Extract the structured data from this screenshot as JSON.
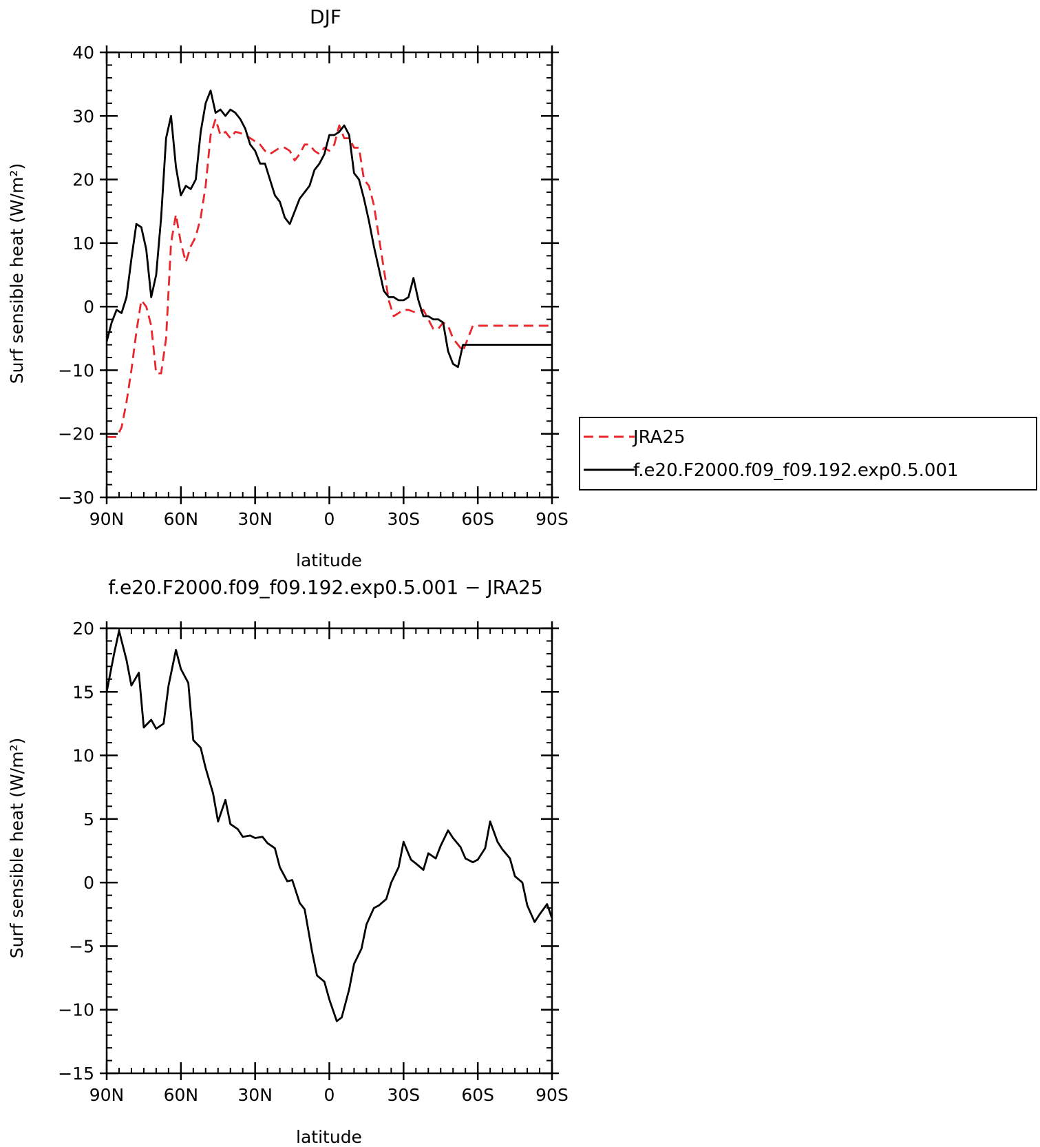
{
  "chart_data": [
    {
      "type": "line",
      "title": "DJF",
      "xlabel": "latitude",
      "ylabel": "Surf sensible heat (W/m²)",
      "xlim": [
        90,
        -90
      ],
      "ylim": [
        -30,
        40
      ],
      "xticks": [
        90,
        60,
        30,
        0,
        -30,
        -60,
        -90
      ],
      "xtick_labels": [
        "90N",
        "60N",
        "30N",
        "0",
        "30S",
        "60S",
        "90S"
      ],
      "yticks": [
        -30,
        -20,
        -10,
        0,
        10,
        20,
        30,
        40
      ],
      "ytick_labels": [
        "−30",
        "−20",
        "−10",
        "0",
        "10",
        "20",
        "30",
        "40"
      ],
      "grid": false,
      "legend": "right",
      "series": [
        {
          "name": "JRA25",
          "color": "#e8262b",
          "dash": "dashed",
          "x": [
            90,
            88,
            86,
            84,
            82,
            80,
            78,
            76,
            74,
            72,
            70,
            68,
            66,
            64,
            62,
            60,
            58,
            56,
            54,
            52,
            50,
            48,
            46,
            44,
            42,
            40,
            38,
            36,
            34,
            32,
            30,
            28,
            26,
            24,
            22,
            20,
            18,
            16,
            14,
            12,
            10,
            8,
            6,
            4,
            2,
            0,
            -2,
            -4,
            -6,
            -8,
            -10,
            -12,
            -14,
            -16,
            -18,
            -20,
            -22,
            -24,
            -26,
            -28,
            -30,
            -32,
            -34,
            -36,
            -38,
            -40,
            -42,
            -44,
            -46,
            -48,
            -50,
            -52,
            -54,
            -56,
            -58,
            -60,
            -62,
            -64,
            -66,
            -68,
            -70,
            -72,
            -74,
            -76,
            -78,
            -80,
            -82,
            -84,
            -86,
            -88,
            -90
          ],
          "y": [
            -20.5,
            -20.5,
            -20.5,
            -19,
            -15,
            -10,
            -4,
            1,
            0,
            -3,
            -10.5,
            -10.5,
            -5,
            10,
            14.5,
            10,
            7,
            9.5,
            11,
            14,
            19,
            27,
            29.5,
            27,
            27.5,
            26.5,
            27.5,
            27.3,
            27,
            26.5,
            26,
            25.5,
            24.5,
            24,
            24.5,
            25,
            25,
            24.5,
            23,
            24,
            25.5,
            25.5,
            24.5,
            24,
            25,
            24.5,
            25.5,
            28.5,
            26.5,
            26.5,
            25,
            25,
            20,
            19,
            16,
            11,
            6,
            1,
            -1.5,
            -1,
            -0.5,
            -0.5,
            -0.8,
            -0.8,
            -0.5,
            -2,
            -3.5,
            -3.5,
            -2.5,
            -3,
            -5,
            -6,
            -7,
            -5,
            -3,
            -3,
            -3,
            -3,
            -3,
            -3,
            -3,
            -3,
            -3,
            -3,
            -3,
            -3,
            -3,
            -3,
            -3,
            -3,
            -3
          ]
        },
        {
          "name": "f.e20.F2000.f09_f09.192.exp0.5.001",
          "color": "#000000",
          "dash": "solid",
          "x": [
            90,
            88,
            86,
            84,
            82,
            80,
            78,
            76,
            74,
            72,
            70,
            68,
            66,
            64,
            62,
            60,
            58,
            56,
            54,
            52,
            50,
            48,
            46,
            44,
            42,
            40,
            38,
            36,
            34,
            32,
            30,
            28,
            26,
            24,
            22,
            20,
            18,
            16,
            14,
            12,
            10,
            8,
            6,
            4,
            2,
            0,
            -2,
            -4,
            -6,
            -8,
            -10,
            -12,
            -14,
            -16,
            -18,
            -20,
            -22,
            -24,
            -26,
            -28,
            -30,
            -32,
            -34,
            -36,
            -38,
            -40,
            -42,
            -44,
            -46,
            -48,
            -50,
            -52,
            -54,
            -56,
            -58,
            -60,
            -62,
            -64,
            -66,
            -68,
            -70,
            -72,
            -74,
            -76,
            -78,
            -80,
            -82,
            -84,
            -86,
            -88,
            -90
          ],
          "y": [
            -5.5,
            -2.5,
            -0.5,
            -1,
            1.5,
            7.5,
            13,
            12.5,
            9,
            1.5,
            5,
            14,
            26.5,
            30,
            22,
            17.5,
            19,
            18.5,
            20,
            27.5,
            32,
            34,
            30.5,
            31,
            30,
            31,
            30.5,
            29.5,
            28,
            25.5,
            24.5,
            22.5,
            22.5,
            20,
            17.5,
            16.5,
            14,
            13,
            15,
            17,
            18,
            19,
            21.5,
            22.5,
            24,
            27,
            27,
            27.5,
            28.5,
            27,
            21,
            20,
            17,
            13.5,
            9.5,
            6,
            2.5,
            1.5,
            1.5,
            1,
            1,
            1.5,
            4.5,
            1,
            -1.5,
            -1.5,
            -2,
            -2,
            -2.5,
            -7,
            -9,
            -9.5,
            -6,
            -6,
            -6,
            -6,
            -6,
            -6,
            -6,
            -6,
            -6,
            -6,
            -6,
            -6,
            -6,
            -6,
            -6,
            -6,
            -6,
            -6,
            -6
          ]
        }
      ]
    },
    {
      "type": "line",
      "title": "f.e20.F2000.f09_f09.192.exp0.5.001 − JRA25",
      "xlabel": "latitude",
      "ylabel": "Surf sensible heat (W/m²)",
      "xlim": [
        90,
        -90
      ],
      "ylim": [
        -15,
        20
      ],
      "xticks": [
        90,
        60,
        30,
        0,
        -30,
        -60,
        -90
      ],
      "xtick_labels": [
        "90N",
        "60N",
        "30N",
        "0",
        "30S",
        "60S",
        "90S"
      ],
      "yticks": [
        -15,
        -10,
        -5,
        0,
        5,
        10,
        15,
        20
      ],
      "ytick_labels": [
        "−15",
        "−10",
        "−5",
        "0",
        "5",
        "10",
        "15",
        "20"
      ],
      "grid": false,
      "series": [
        {
          "color": "#000000",
          "dash": "solid",
          "x": [
            90,
            87,
            85,
            82,
            80,
            77,
            75,
            72,
            70,
            67,
            65,
            62,
            60,
            57,
            55,
            52,
            50,
            47,
            45,
            42,
            40,
            37,
            35,
            32,
            30,
            27,
            25,
            22,
            20,
            17,
            15,
            12,
            10,
            7,
            5,
            2,
            0,
            -3,
            -5,
            -8,
            -10,
            -13,
            -15,
            -18,
            -20,
            -23,
            -25,
            -28,
            -30,
            -33,
            -35,
            -38,
            -40,
            -43,
            -45,
            -48,
            -50,
            -53,
            -55,
            -58,
            -60,
            -63,
            -65,
            -68,
            -70,
            -73,
            -75,
            -78,
            -80,
            -83,
            -85,
            -88,
            -90
          ],
          "y": [
            15,
            18,
            19.8,
            17.5,
            15.5,
            16.5,
            12.2,
            12.8,
            12.1,
            12.5,
            15.5,
            18.3,
            16.8,
            15.7,
            11.2,
            10.6,
            9,
            7,
            4.8,
            6.5,
            4.6,
            4.2,
            3.6,
            3.7,
            3.5,
            3.6,
            3.1,
            2.7,
            1.2,
            0.1,
            0.2,
            -1.6,
            -2.1,
            -5.4,
            -7.3,
            -7.8,
            -9.2,
            -10.9,
            -10.6,
            -8.4,
            -6.4,
            -5.2,
            -3.3,
            -2,
            -1.8,
            -1.3,
            0,
            1.2,
            3.2,
            1.8,
            1.5,
            1,
            2.3,
            1.9,
            2.9,
            4.1,
            3.5,
            2.8,
            1.9,
            1.6,
            1.8,
            2.7,
            4.8,
            3.2,
            2.6,
            1.9,
            0.5,
            0,
            -1.8,
            -3.1,
            -2.5,
            -1.7,
            -2.8
          ]
        }
      ]
    }
  ]
}
